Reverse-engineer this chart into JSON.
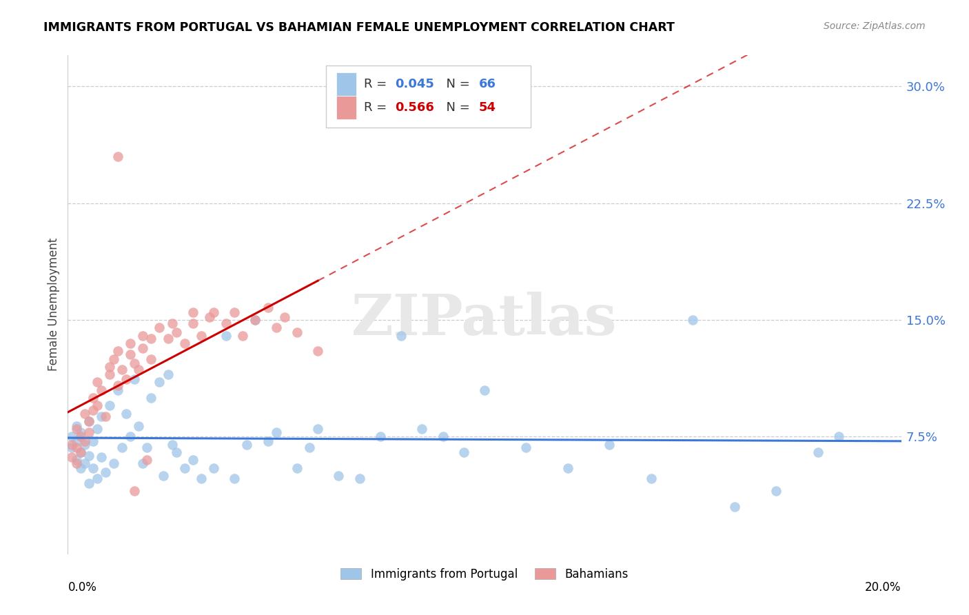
{
  "title": "IMMIGRANTS FROM PORTUGAL VS BAHAMIAN FEMALE UNEMPLOYMENT CORRELATION CHART",
  "source": "Source: ZipAtlas.com",
  "ylabel": "Female Unemployment",
  "right_yticks": [
    "30.0%",
    "22.5%",
    "15.0%",
    "7.5%"
  ],
  "right_ytick_vals": [
    0.3,
    0.225,
    0.15,
    0.075
  ],
  "xlim": [
    0.0,
    0.2
  ],
  "ylim": [
    0.0,
    0.32
  ],
  "blue_R": 0.045,
  "blue_N": 66,
  "pink_R": 0.566,
  "pink_N": 54,
  "blue_color": "#9fc5e8",
  "pink_color": "#ea9999",
  "blue_line_color": "#3c78d8",
  "pink_line_color": "#cc0000",
  "watermark": "ZIPatlas",
  "legend_label_blue": "Immigrants from Portugal",
  "legend_label_pink": "Bahamians",
  "blue_scatter_x": [
    0.001,
    0.001,
    0.002,
    0.002,
    0.002,
    0.003,
    0.003,
    0.003,
    0.004,
    0.004,
    0.005,
    0.005,
    0.005,
    0.006,
    0.006,
    0.007,
    0.007,
    0.008,
    0.008,
    0.009,
    0.01,
    0.011,
    0.012,
    0.013,
    0.014,
    0.015,
    0.016,
    0.017,
    0.018,
    0.019,
    0.02,
    0.022,
    0.023,
    0.024,
    0.025,
    0.026,
    0.028,
    0.03,
    0.032,
    0.035,
    0.038,
    0.04,
    0.043,
    0.045,
    0.048,
    0.05,
    0.055,
    0.058,
    0.06,
    0.065,
    0.07,
    0.075,
    0.08,
    0.085,
    0.09,
    0.095,
    0.1,
    0.11,
    0.12,
    0.13,
    0.14,
    0.15,
    0.16,
    0.17,
    0.18,
    0.185
  ],
  "blue_scatter_y": [
    0.075,
    0.068,
    0.082,
    0.072,
    0.06,
    0.078,
    0.065,
    0.055,
    0.07,
    0.058,
    0.085,
    0.063,
    0.045,
    0.072,
    0.055,
    0.08,
    0.048,
    0.088,
    0.062,
    0.052,
    0.095,
    0.058,
    0.105,
    0.068,
    0.09,
    0.075,
    0.112,
    0.082,
    0.058,
    0.068,
    0.1,
    0.11,
    0.05,
    0.115,
    0.07,
    0.065,
    0.055,
    0.06,
    0.048,
    0.055,
    0.14,
    0.048,
    0.07,
    0.15,
    0.072,
    0.078,
    0.055,
    0.068,
    0.08,
    0.05,
    0.048,
    0.075,
    0.14,
    0.08,
    0.075,
    0.065,
    0.105,
    0.068,
    0.055,
    0.07,
    0.048,
    0.15,
    0.03,
    0.04,
    0.065,
    0.075
  ],
  "pink_scatter_x": [
    0.001,
    0.001,
    0.002,
    0.002,
    0.002,
    0.003,
    0.003,
    0.004,
    0.004,
    0.005,
    0.005,
    0.006,
    0.006,
    0.007,
    0.007,
    0.008,
    0.009,
    0.01,
    0.01,
    0.011,
    0.012,
    0.012,
    0.013,
    0.014,
    0.015,
    0.015,
    0.016,
    0.017,
    0.018,
    0.018,
    0.019,
    0.02,
    0.02,
    0.022,
    0.024,
    0.025,
    0.026,
    0.028,
    0.03,
    0.03,
    0.032,
    0.034,
    0.035,
    0.038,
    0.04,
    0.042,
    0.045,
    0.048,
    0.05,
    0.052,
    0.055,
    0.06,
    0.012,
    0.016
  ],
  "pink_scatter_y": [
    0.062,
    0.07,
    0.068,
    0.058,
    0.08,
    0.075,
    0.065,
    0.09,
    0.072,
    0.085,
    0.078,
    0.1,
    0.092,
    0.095,
    0.11,
    0.105,
    0.088,
    0.115,
    0.12,
    0.125,
    0.13,
    0.108,
    0.118,
    0.112,
    0.128,
    0.135,
    0.122,
    0.118,
    0.132,
    0.14,
    0.06,
    0.138,
    0.125,
    0.145,
    0.138,
    0.148,
    0.142,
    0.135,
    0.148,
    0.155,
    0.14,
    0.152,
    0.155,
    0.148,
    0.155,
    0.14,
    0.15,
    0.158,
    0.145,
    0.152,
    0.142,
    0.13,
    0.255,
    0.04
  ],
  "blue_trend_x": [
    0.0,
    0.2
  ],
  "pink_trend_solid_end": 0.065,
  "pink_trend_x_end": 0.2
}
